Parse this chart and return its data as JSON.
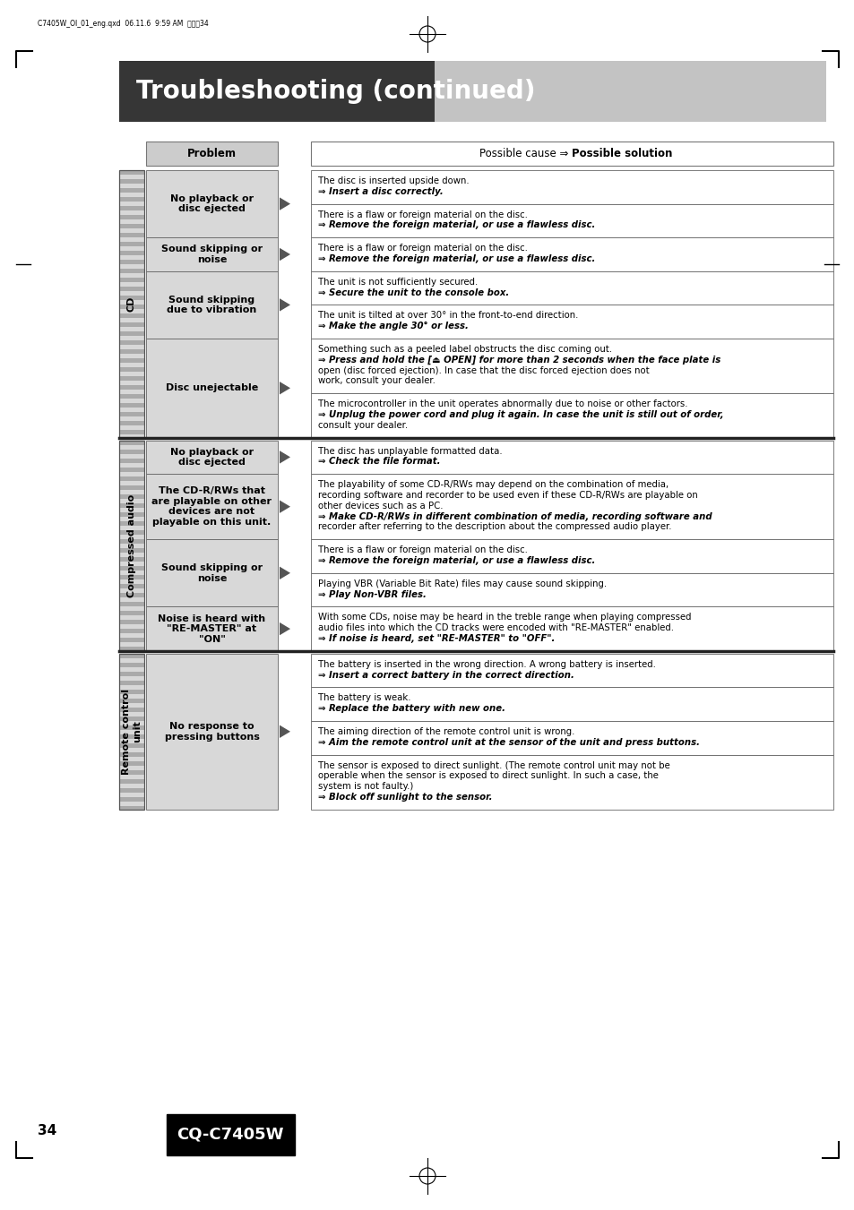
{
  "page_title": "Troubleshooting (continued)",
  "header_text": "C7405W_OI_01_eng.qxd  06.11.6  9:59 AM  ページ34",
  "page_num": "34",
  "model": "CQ-C7405W",
  "sections": [
    {
      "label": "CD",
      "problems": [
        {
          "problem": "No playback or\ndisc ejected",
          "solutions": [
            "The disc is inserted upside down.\n⇒ Insert a disc correctly.",
            "There is a flaw or foreign material on the disc.\n⇒ Remove the foreign material, or use a flawless disc."
          ]
        },
        {
          "problem": "Sound skipping or\nnoise",
          "solutions": [
            "There is a flaw or foreign material on the disc.\n⇒ Remove the foreign material, or use a flawless disc."
          ]
        },
        {
          "problem": "Sound skipping\ndue to vibration",
          "solutions": [
            "The unit is not sufficiently secured.\n⇒ Secure the unit to the console box.",
            "The unit is tilted at over 30° in the front-to-end direction.\n⇒ Make the angle 30° or less."
          ]
        },
        {
          "problem": "Disc unejectable",
          "solutions": [
            "Something such as a peeled label obstructs the disc coming out.\n⇒ Press and hold the [⏏ OPEN] for more than 2 seconds when the face plate is\nopen (disc forced ejection). In case that the disc forced ejection does not\nwork, consult your dealer.",
            "The microcontroller in the unit operates abnormally due to noise or other factors.\n⇒ Unplug the power cord and plug it again. In case the unit is still out of order,\nconsult your dealer."
          ]
        }
      ]
    },
    {
      "label": "Compressed audio",
      "problems": [
        {
          "problem": "No playback or\ndisc ejected",
          "solutions": [
            "The disc has unplayable formatted data.\n⇒ Check the file format."
          ]
        },
        {
          "problem": "The CD-R/RWs that\nare playable on other\ndevices are not\nplayable on this unit.",
          "solutions": [
            "The playability of some CD-R/RWs may depend on the combination of media,\nrecording software and recorder to be used even if these CD-R/RWs are playable on\nother devices such as a PC.\n⇒ Make CD-R/RWs in different combination of media, recording software and\nrecorder after referring to the description about the compressed audio player."
          ]
        },
        {
          "problem": "Sound skipping or\nnoise",
          "solutions": [
            "There is a flaw or foreign material on the disc.\n⇒ Remove the foreign material, or use a flawless disc.",
            "Playing VBR (Variable Bit Rate) files may cause sound skipping.\n⇒ Play Non-VBR files."
          ]
        },
        {
          "problem": "Noise is heard with\n\"RE-MASTER\" at\n\"ON\"",
          "solutions": [
            "With some CDs, noise may be heard in the treble range when playing compressed\naudio files into which the CD tracks were encoded with \"RE-MASTER\" enabled.\n⇒ If noise is heard, set \"RE-MASTER\" to \"OFF\"."
          ]
        }
      ]
    },
    {
      "label": "Remote control\nunit",
      "problems": [
        {
          "problem": "No response to\npressing buttons",
          "solutions": [
            "The battery is inserted in the wrong direction. A wrong battery is inserted.\n⇒ Insert a correct battery in the correct direction.",
            "The battery is weak.\n⇒ Replace the battery with new one.",
            "The aiming direction of the remote control unit is wrong.\n⇒ Aim the remote control unit at the sensor of the unit and press buttons.",
            "The sensor is exposed to direct sunlight. (The remote control unit may not be\noperable when the sensor is exposed to direct sunlight. In such a case, the\nsystem is not faulty.)\n⇒ Block off sunlight to the sensor."
          ]
        }
      ]
    }
  ]
}
